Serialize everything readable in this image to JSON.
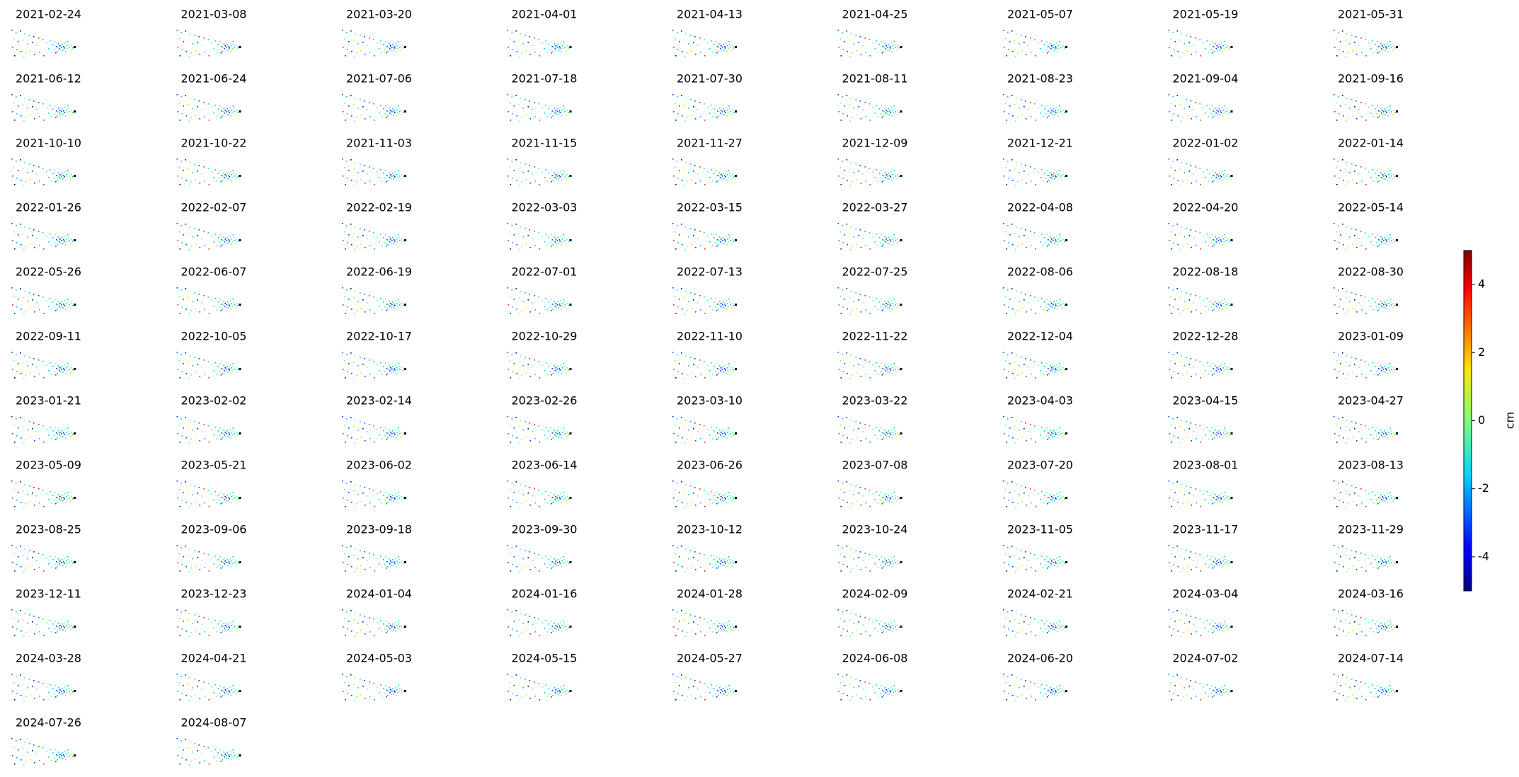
{
  "chart_data": {
    "type": "scatter",
    "titles": [
      "2021-02-24",
      "2021-03-08",
      "2021-03-20",
      "2021-04-01",
      "2021-04-13",
      "2021-04-25",
      "2021-05-07",
      "2021-05-19",
      "2021-05-31",
      "2021-06-12",
      "2021-06-24",
      "2021-07-06",
      "2021-07-18",
      "2021-07-30",
      "2021-08-11",
      "2021-08-23",
      "2021-09-04",
      "2021-09-16",
      "2021-10-10",
      "2021-10-22",
      "2021-11-03",
      "2021-11-15",
      "2021-11-27",
      "2021-12-09",
      "2021-12-21",
      "2022-01-02",
      "2022-01-14",
      "2022-01-26",
      "2022-02-07",
      "2022-02-19",
      "2022-03-03",
      "2022-03-15",
      "2022-03-27",
      "2022-04-08",
      "2022-04-20",
      "2022-05-14",
      "2022-05-26",
      "2022-06-07",
      "2022-06-19",
      "2022-07-01",
      "2022-07-13",
      "2022-07-25",
      "2022-08-06",
      "2022-08-18",
      "2022-08-30",
      "2022-09-11",
      "2022-10-05",
      "2022-10-17",
      "2022-10-29",
      "2022-11-10",
      "2022-11-22",
      "2022-12-04",
      "2022-12-28",
      "2023-01-09",
      "2023-01-21",
      "2023-02-02",
      "2023-02-14",
      "2023-02-26",
      "2023-03-10",
      "2023-03-22",
      "2023-04-03",
      "2023-04-15",
      "2023-04-27",
      "2023-05-09",
      "2023-05-21",
      "2023-06-02",
      "2023-06-14",
      "2023-06-26",
      "2023-07-08",
      "2023-07-20",
      "2023-08-01",
      "2023-08-13",
      "2023-08-25",
      "2023-09-06",
      "2023-09-18",
      "2023-09-30",
      "2023-10-12",
      "2023-10-24",
      "2023-11-05",
      "2023-11-17",
      "2023-11-29",
      "2023-12-11",
      "2023-12-23",
      "2024-01-04",
      "2024-01-16",
      "2024-01-28",
      "2024-02-09",
      "2024-02-21",
      "2024-03-04",
      "2024-03-16",
      "2024-03-28",
      "2024-04-21",
      "2024-05-03",
      "2024-05-15",
      "2024-05-27",
      "2024-06-08",
      "2024-06-20",
      "2024-07-02",
      "2024-07-14",
      "2024-07-26",
      "2024-08-07"
    ],
    "colorbar": {
      "label": "cm",
      "lim": [
        -5,
        5
      ],
      "ticks": [
        -4,
        -2,
        0,
        2,
        4
      ],
      "colormap": "jet"
    }
  }
}
